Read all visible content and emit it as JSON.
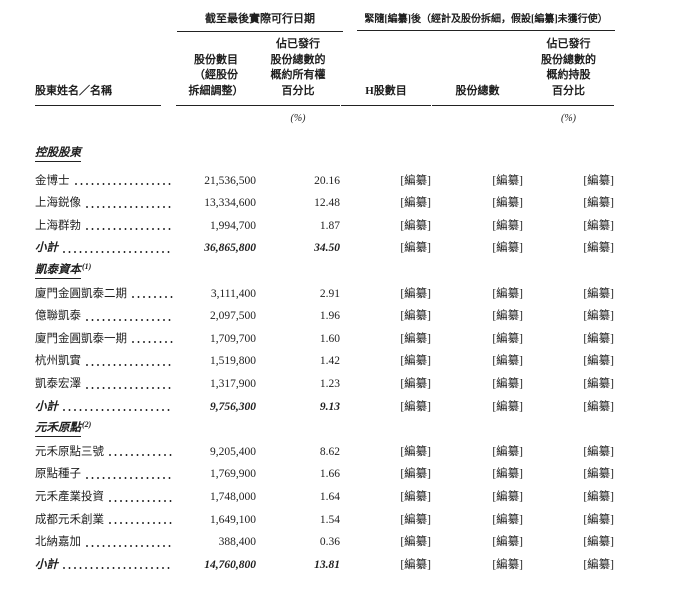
{
  "page": {
    "background": "#ffffff",
    "text_color": "#1e1e1e",
    "rule_color": "#222222"
  },
  "header": {
    "col1_label": "股東姓名／名稱",
    "group1": {
      "title": "截至最後實際可行日期",
      "col2_lines": [
        "股份數目",
        "（經股份",
        "拆細調整）"
      ],
      "col3_lines": [
        "佔已發行",
        "股份總數的",
        "概約所有權",
        "百分比"
      ],
      "pct_note": "(%)"
    },
    "group2": {
      "title": "緊隨[編纂]後（經計及股份拆細，假設[編纂]未獲行使）",
      "col4_label": "H股數目",
      "col5_label": "股份總數",
      "col6_lines": [
        "佔已發行",
        "股份總數的",
        "概約持股",
        "百分比"
      ],
      "pct_note": "(%)"
    }
  },
  "subtotal_label": "小計",
  "redacted_label": "[編纂]",
  "sections": [
    {
      "title": "控股股東",
      "footnote_sup": "",
      "rows": [
        {
          "name": "金博士",
          "shares": "21,536,500",
          "ownership_pct": "20.16",
          "h_shares": "[編纂]",
          "total_shares": "[編纂]",
          "holding_pct": "[編纂]"
        },
        {
          "name": "上海鋭像",
          "shares": "13,334,600",
          "ownership_pct": "12.48",
          "h_shares": "[編纂]",
          "total_shares": "[編纂]",
          "holding_pct": "[編纂]"
        },
        {
          "name": "上海群勃",
          "shares": "1,994,700",
          "ownership_pct": "1.87",
          "h_shares": "[編纂]",
          "total_shares": "[編纂]",
          "holding_pct": "[編纂]"
        }
      ],
      "subtotal": {
        "shares": "36,865,800",
        "ownership_pct": "34.50",
        "h_shares": "[編纂]",
        "total_shares": "[編纂]",
        "holding_pct": "[編纂]"
      }
    },
    {
      "title": "凱泰資本",
      "footnote_sup": "(1)",
      "rows": [
        {
          "name": "廈門金圓凱泰二期",
          "shares": "3,111,400",
          "ownership_pct": "2.91",
          "h_shares": "[編纂]",
          "total_shares": "[編纂]",
          "holding_pct": "[編纂]"
        },
        {
          "name": "億聯凱泰",
          "shares": "2,097,500",
          "ownership_pct": "1.96",
          "h_shares": "[編纂]",
          "total_shares": "[編纂]",
          "holding_pct": "[編纂]"
        },
        {
          "name": "廈門金圓凱泰一期",
          "shares": "1,709,700",
          "ownership_pct": "1.60",
          "h_shares": "[編纂]",
          "total_shares": "[編纂]",
          "holding_pct": "[編纂]"
        },
        {
          "name": "杭州凱實",
          "shares": "1,519,800",
          "ownership_pct": "1.42",
          "h_shares": "[編纂]",
          "total_shares": "[編纂]",
          "holding_pct": "[編纂]"
        },
        {
          "name": "凱泰宏澤",
          "shares": "1,317,900",
          "ownership_pct": "1.23",
          "h_shares": "[編纂]",
          "total_shares": "[編纂]",
          "holding_pct": "[編纂]"
        }
      ],
      "subtotal": {
        "shares": "9,756,300",
        "ownership_pct": "9.13",
        "h_shares": "[編纂]",
        "total_shares": "[編纂]",
        "holding_pct": "[編纂]"
      }
    },
    {
      "title": "元禾原點",
      "footnote_sup": "(2)",
      "rows": [
        {
          "name": "元禾原點三號",
          "shares": "9,205,400",
          "ownership_pct": "8.62",
          "h_shares": "[編纂]",
          "total_shares": "[編纂]",
          "holding_pct": "[編纂]"
        },
        {
          "name": "原點種子",
          "shares": "1,769,900",
          "ownership_pct": "1.66",
          "h_shares": "[編纂]",
          "total_shares": "[編纂]",
          "holding_pct": "[編纂]"
        },
        {
          "name": "元禾產業投資",
          "shares": "1,748,000",
          "ownership_pct": "1.64",
          "h_shares": "[編纂]",
          "total_shares": "[編纂]",
          "holding_pct": "[編纂]"
        },
        {
          "name": "成都元禾創業",
          "shares": "1,649,100",
          "ownership_pct": "1.54",
          "h_shares": "[編纂]",
          "total_shares": "[編纂]",
          "holding_pct": "[編纂]"
        },
        {
          "name": "北納嘉加",
          "shares": "388,400",
          "ownership_pct": "0.36",
          "h_shares": "[編纂]",
          "total_shares": "[編纂]",
          "holding_pct": "[編纂]"
        }
      ],
      "subtotal": {
        "shares": "14,760,800",
        "ownership_pct": "13.81",
        "h_shares": "[編纂]",
        "total_shares": "[編纂]",
        "holding_pct": "[編纂]"
      }
    }
  ]
}
